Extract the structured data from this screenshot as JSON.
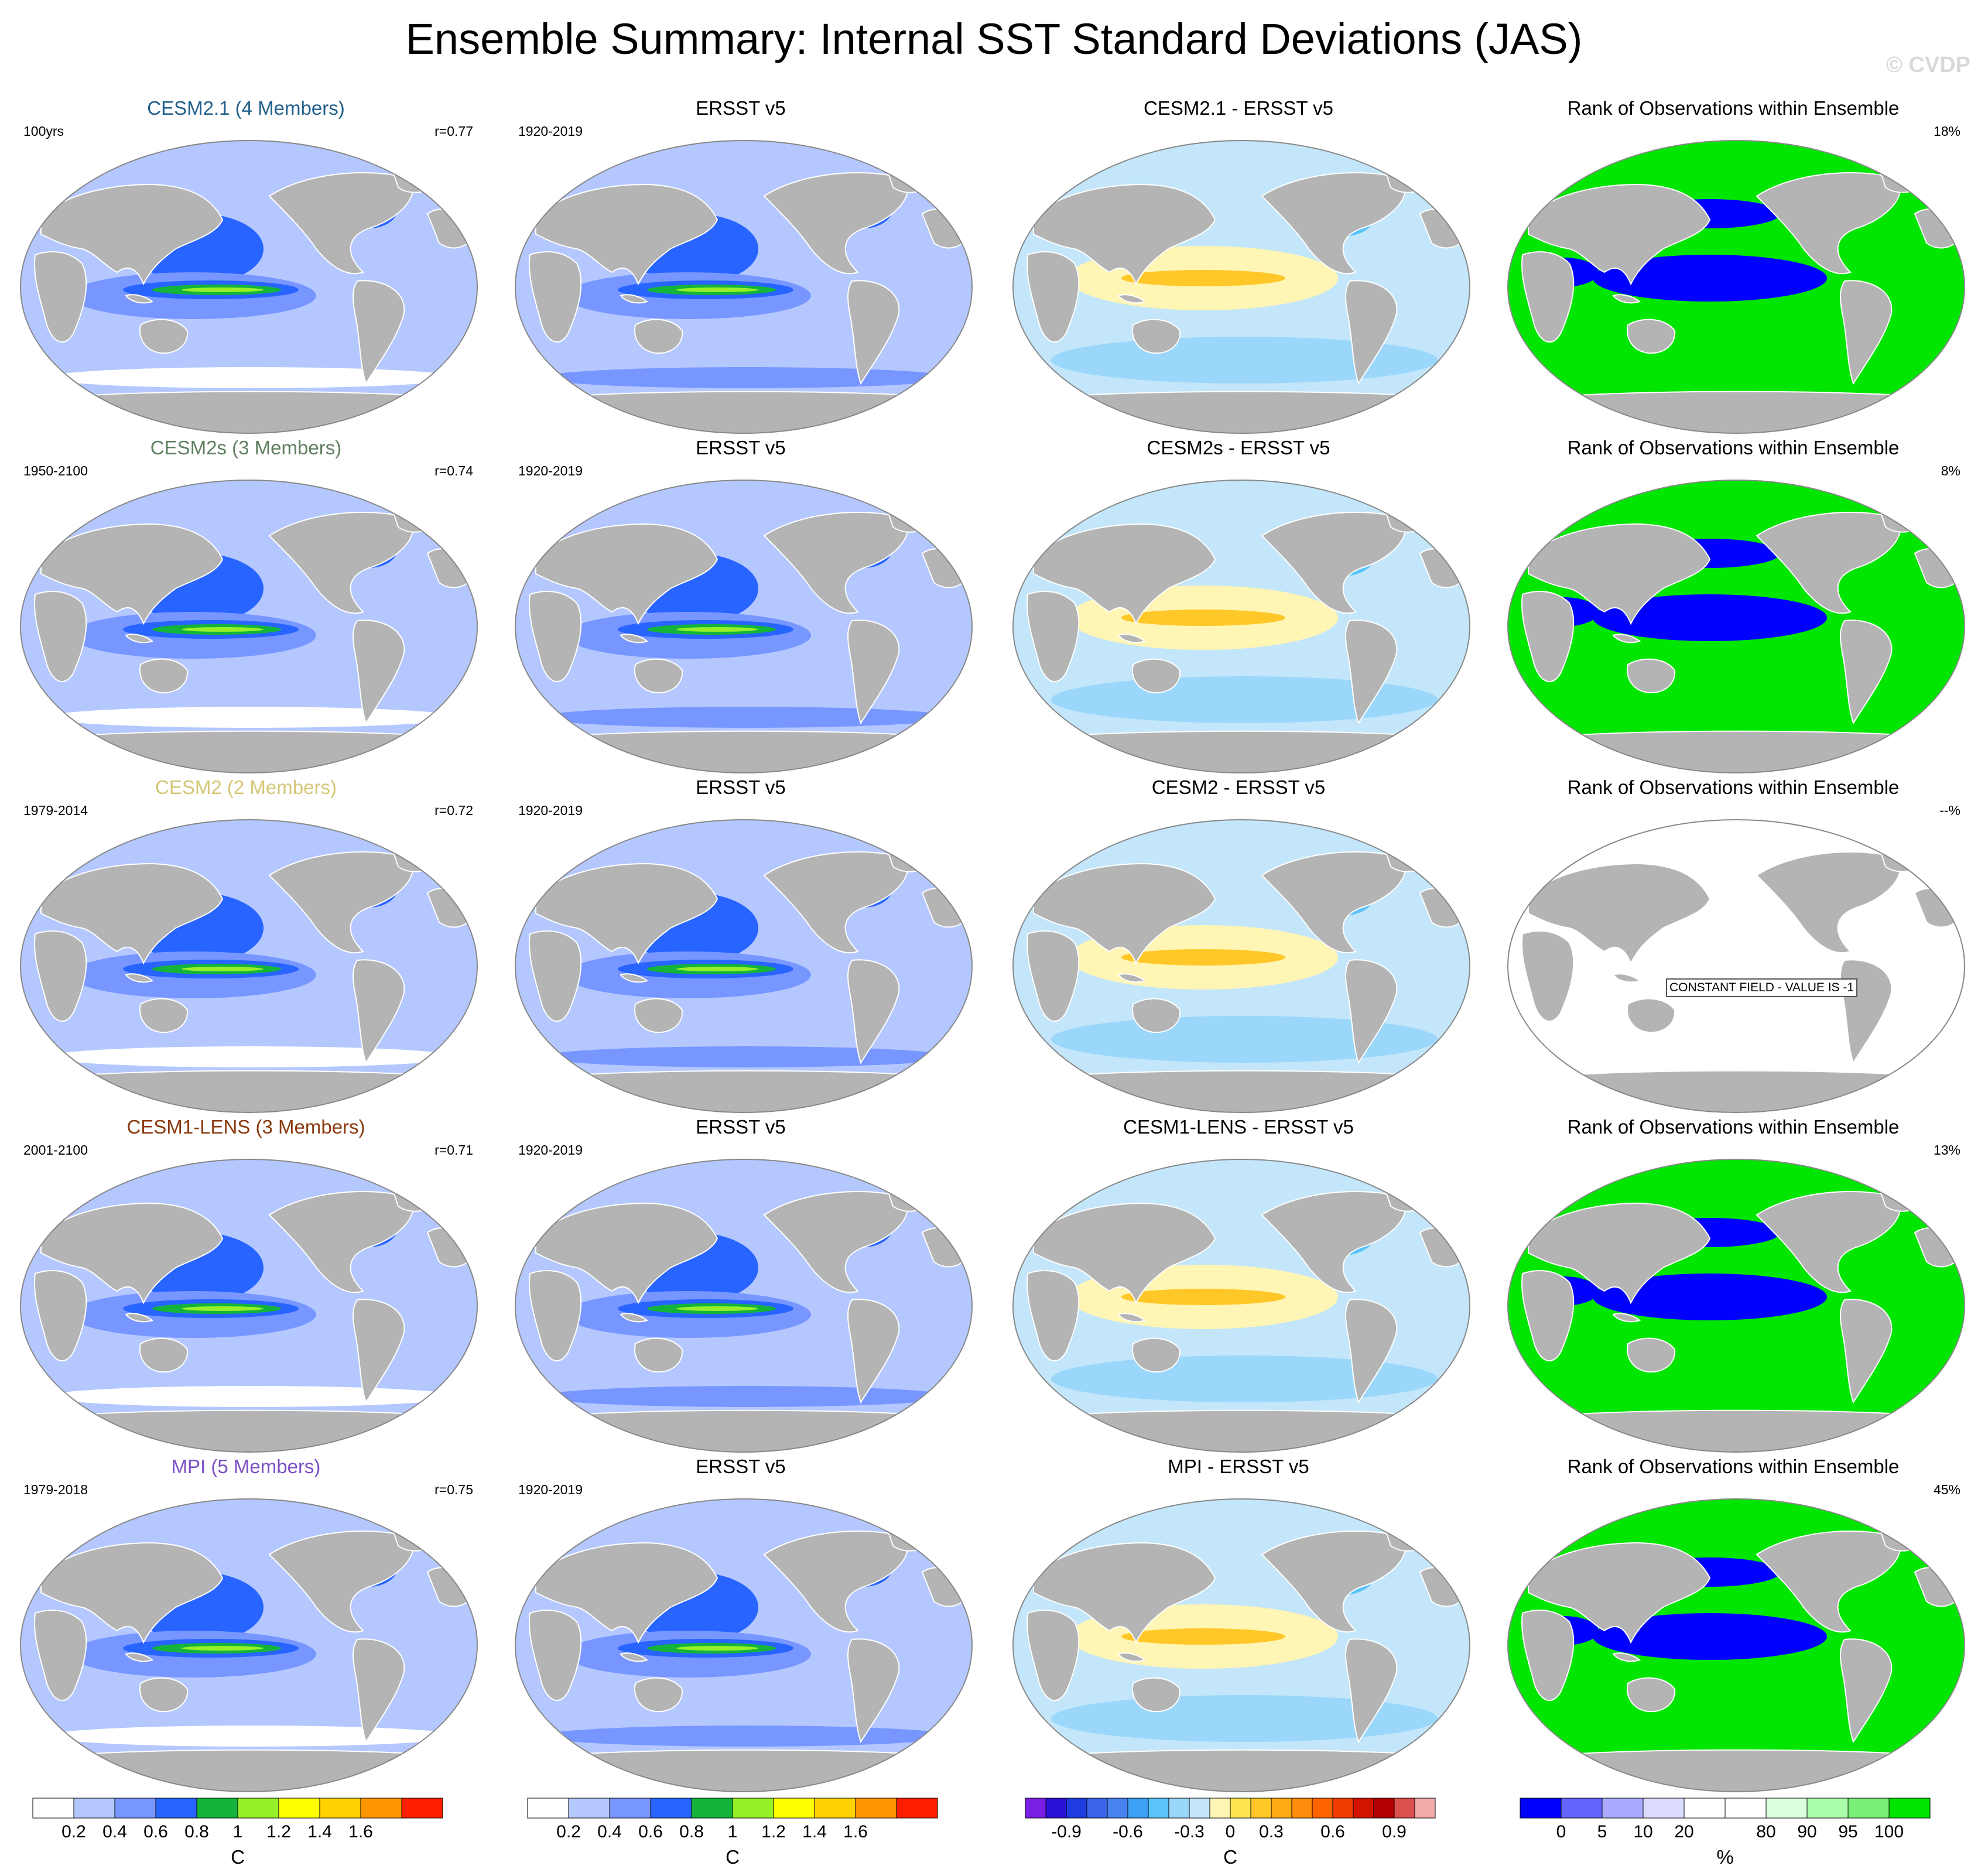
{
  "title": "Ensemble Summary: Internal SST Standard Deviations (JAS)",
  "watermark": "© CVDP",
  "rows": [
    {
      "model": {
        "title": "CESM2.1 (4 Members)",
        "color": "#1f5f8b",
        "period": "100yrs",
        "corr": "r=0.77"
      },
      "obs": {
        "title": "ERSST v5",
        "period": "1920-2019"
      },
      "diff": {
        "title": "CESM2.1 - ERSST v5"
      },
      "rank": {
        "title": "Rank of Observations within Ensemble",
        "pct": "18%"
      }
    },
    {
      "model": {
        "title": "CESM2s (3 Members)",
        "color": "#5f7f5f",
        "period": "1950-2100",
        "corr": "r=0.74"
      },
      "obs": {
        "title": "ERSST v5",
        "period": "1920-2019"
      },
      "diff": {
        "title": "CESM2s - ERSST v5"
      },
      "rank": {
        "title": "Rank of Observations within Ensemble",
        "pct": "8%"
      }
    },
    {
      "model": {
        "title": "CESM2 (2 Members)",
        "color": "#d4c777",
        "period": "1979-2014",
        "corr": "r=0.72"
      },
      "obs": {
        "title": "ERSST v5",
        "period": "1920-2019"
      },
      "diff": {
        "title": "CESM2 - ERSST v5"
      },
      "rank": {
        "title": "Rank of Observations within Ensemble",
        "pct": "--%",
        "constant_label": "CONSTANT FIELD - VALUE IS -1"
      }
    },
    {
      "model": {
        "title": "CESM1-LENS (3 Members)",
        "color": "#8b3a0f",
        "period": "2001-2100",
        "corr": "r=0.71"
      },
      "obs": {
        "title": "ERSST v5",
        "period": "1920-2019"
      },
      "diff": {
        "title": "CESM1-LENS - ERSST v5"
      },
      "rank": {
        "title": "Rank of Observations within Ensemble",
        "pct": "13%"
      }
    },
    {
      "model": {
        "title": "MPI (5 Members)",
        "color": "#7b4fc4",
        "period": "1979-2018",
        "corr": "r=0.75"
      },
      "obs": {
        "title": "ERSST v5",
        "period": "1920-2019"
      },
      "diff": {
        "title": "MPI - ERSST v5"
      },
      "rank": {
        "title": "Rank of Observations within Ensemble",
        "pct": "45%"
      }
    }
  ],
  "colorbars": {
    "stddev": {
      "unit": "C",
      "colors": [
        "#ffffff",
        "#b4c8ff",
        "#7896ff",
        "#2864ff",
        "#14b43c",
        "#96f028",
        "#ffff00",
        "#ffd200",
        "#ff9600",
        "#ff1e00"
      ],
      "labels": [
        "0.2",
        "0.4",
        "0.6",
        "0.8",
        "1",
        "1.2",
        "1.4",
        "1.6"
      ]
    },
    "diff": {
      "unit": "C",
      "colors": [
        "#7a1fe6",
        "#2a12d6",
        "#1f3ce0",
        "#3c64e8",
        "#4682f0",
        "#3ca0f5",
        "#5ac3fa",
        "#9bd7fa",
        "#c3e6fa",
        "#fff5b4",
        "#ffe650",
        "#ffc828",
        "#ffaa14",
        "#ff8c0a",
        "#ff6400",
        "#f03c00",
        "#d21400",
        "#b40000",
        "#dc5050",
        "#f5aaaa"
      ],
      "labels": [
        "-0.9",
        "-0.6",
        "-0.3",
        "0",
        "0.3",
        "0.6",
        "0.9"
      ]
    },
    "rank": {
      "unit": "%",
      "colors": [
        "#0000ff",
        "#6464ff",
        "#aaaaff",
        "#dcdcff",
        "#ffffff",
        "#ffffff",
        "#dcffdc",
        "#aaffaa",
        "#78f078",
        "#00e600"
      ],
      "labels": [
        "0",
        "5",
        "10",
        "20",
        "80",
        "90",
        "95",
        "100"
      ]
    }
  }
}
